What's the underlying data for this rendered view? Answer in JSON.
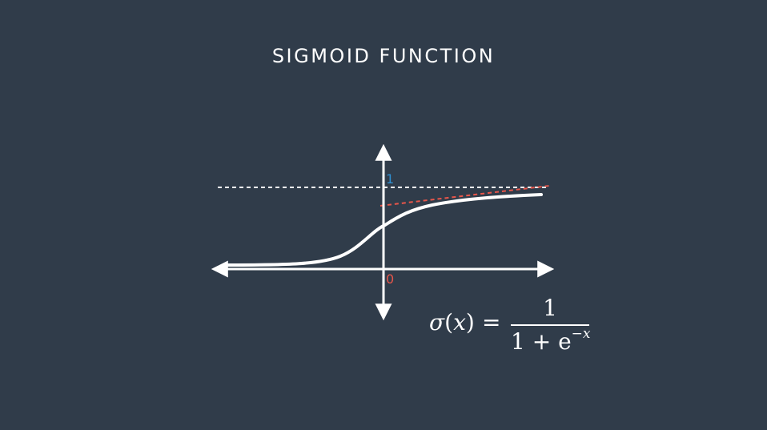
{
  "title": "SIGMOID FUNCTION",
  "ticks": {
    "upper": "1",
    "origin": "0"
  },
  "formula": {
    "lhs_func": "σ",
    "lhs_open": "(",
    "lhs_var": "x",
    "lhs_close": ")",
    "equals": "=",
    "numerator": "1",
    "denominator_base": "1 + e",
    "denominator_exponent": "−x"
  },
  "colors": {
    "background": "#303c4a",
    "curve": "#ffffff",
    "asymptote": "#ffffff",
    "tangent": "#e8564a",
    "tick_one": "#2f8fcf",
    "tick_zero": "#e8564a"
  }
}
